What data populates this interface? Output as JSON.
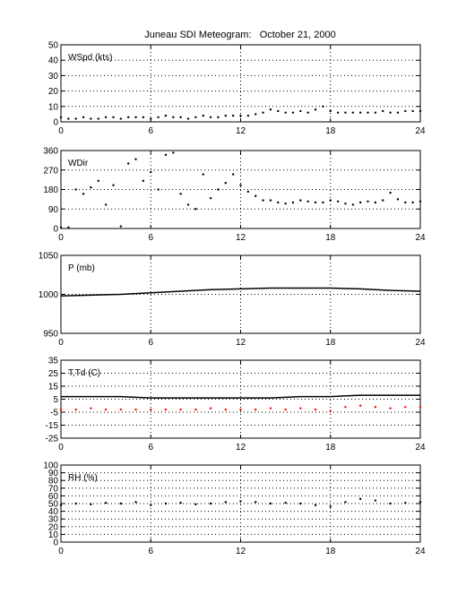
{
  "title": "Juneau SDI Meteogram:   October 21, 2000",
  "x_ticks": [
    0,
    6,
    12,
    18,
    24
  ],
  "xlim": [
    0,
    24
  ],
  "style": {
    "grid": true,
    "grid_style": "dotted",
    "background": "#ffffff",
    "axes_color": "#000000"
  },
  "chart_data": [
    {
      "type": "scatter",
      "label": "WSpd (kts)",
      "xlim": [
        0,
        24
      ],
      "ylim": [
        0,
        50
      ],
      "y_ticks": [
        0,
        10,
        20,
        30,
        40,
        50
      ],
      "series": [
        {
          "color": "#000000",
          "style": "dots",
          "x": [
            0,
            0.5,
            1,
            1.5,
            2,
            2.5,
            3,
            3.5,
            4,
            4.5,
            5,
            5.5,
            6,
            6.5,
            7,
            7.5,
            8,
            8.5,
            9,
            9.5,
            10,
            10.5,
            11,
            11.5,
            12,
            12.5,
            13,
            13.5,
            14,
            14.5,
            15,
            15.5,
            16,
            16.5,
            17,
            17.5,
            18,
            18.5,
            19,
            19.5,
            20,
            20.5,
            21,
            21.5,
            22,
            22.5,
            23,
            23.5,
            24
          ],
          "y": [
            3,
            2,
            2,
            3,
            2,
            2,
            3,
            3,
            2,
            3,
            3,
            3,
            2,
            3,
            4,
            3,
            3,
            2,
            3,
            4,
            3,
            3,
            4,
            4,
            4,
            4,
            5,
            6,
            8,
            7,
            6,
            6,
            7,
            6,
            8,
            10,
            7,
            6,
            6,
            6,
            6,
            6,
            6,
            7,
            6,
            6,
            7,
            7,
            7
          ]
        }
      ]
    },
    {
      "type": "scatter",
      "label": "WDir",
      "xlim": [
        0,
        24
      ],
      "ylim": [
        0,
        360
      ],
      "y_ticks": [
        0,
        90,
        180,
        270,
        360
      ],
      "series": [
        {
          "color": "#000000",
          "style": "dots",
          "x": [
            0,
            0.5,
            1,
            1.5,
            2,
            2.5,
            3,
            3.5,
            4,
            4.5,
            5,
            5.5,
            6,
            6.5,
            7,
            7.5,
            8,
            8.5,
            9,
            9.5,
            10,
            10.5,
            11,
            11.5,
            12,
            12.5,
            13,
            13.5,
            14,
            14.5,
            15,
            15.5,
            16,
            16.5,
            17,
            17.5,
            18,
            18.5,
            19,
            19.5,
            20,
            20.5,
            21,
            21.5,
            22,
            22.5,
            23,
            23.5,
            24
          ],
          "y": [
            5,
            5,
            180,
            160,
            190,
            220,
            110,
            200,
            10,
            300,
            320,
            220,
            260,
            180,
            340,
            350,
            160,
            110,
            90,
            250,
            140,
            180,
            210,
            250,
            200,
            170,
            150,
            130,
            130,
            120,
            115,
            120,
            130,
            125,
            120,
            120,
            130,
            125,
            115,
            110,
            120,
            125,
            120,
            130,
            165,
            135,
            120,
            120,
            125
          ]
        }
      ]
    },
    {
      "type": "line",
      "label": "P (mb)",
      "xlim": [
        0,
        24
      ],
      "ylim": [
        950,
        1050
      ],
      "y_ticks": [
        950,
        1000,
        1050
      ],
      "series": [
        {
          "color": "#000000",
          "style": "line",
          "x": [
            0,
            2,
            4,
            6,
            8,
            10,
            12,
            14,
            16,
            18,
            20,
            22,
            24
          ],
          "y": [
            998,
            999,
            1000,
            1002,
            1004,
            1006,
            1007,
            1008,
            1008,
            1008,
            1007,
            1005,
            1004
          ]
        }
      ]
    },
    {
      "type": "line",
      "label": "T,Td (C)",
      "xlim": [
        0,
        24
      ],
      "ylim": [
        -25,
        35
      ],
      "y_ticks": [
        -25,
        -15,
        -5,
        5,
        15,
        25,
        35
      ],
      "series": [
        {
          "color": "#000000",
          "style": "line",
          "x": [
            0,
            2,
            4,
            6,
            8,
            10,
            12,
            14,
            16,
            18,
            20,
            22,
            24
          ],
          "y": [
            7,
            7,
            7,
            6,
            6,
            6,
            6,
            6,
            7,
            7,
            8,
            8,
            8
          ]
        },
        {
          "color": "#ff0000",
          "style": "dots",
          "x": [
            0,
            1,
            2,
            3,
            4,
            5,
            6,
            7,
            8,
            9,
            10,
            11,
            12,
            13,
            14,
            15,
            16,
            17,
            18,
            19,
            20,
            21,
            22,
            23,
            24
          ],
          "y": [
            -3,
            -3,
            -2,
            -3,
            -3,
            -3,
            -3,
            -3,
            -3,
            -3,
            -2,
            -3,
            -3,
            -3,
            -2,
            -3,
            -2,
            -3,
            -4,
            -1,
            0,
            -1,
            -2,
            -1,
            -1
          ]
        }
      ]
    },
    {
      "type": "scatter",
      "label": "RH (%)",
      "xlim": [
        0,
        24
      ],
      "ylim": [
        0,
        100
      ],
      "y_ticks": [
        0,
        10,
        20,
        30,
        40,
        50,
        60,
        70,
        80,
        90,
        100
      ],
      "series": [
        {
          "color": "#000000",
          "style": "dots",
          "x": [
            0,
            1,
            2,
            3,
            4,
            5,
            6,
            7,
            8,
            9,
            10,
            11,
            12,
            13,
            14,
            15,
            16,
            17,
            18,
            19,
            20,
            21,
            22,
            23,
            24
          ],
          "y": [
            48,
            50,
            49,
            51,
            50,
            52,
            48,
            50,
            51,
            49,
            50,
            52,
            53,
            52,
            50,
            51,
            50,
            48,
            46,
            52,
            56,
            54,
            50,
            51,
            52
          ]
        }
      ]
    }
  ]
}
